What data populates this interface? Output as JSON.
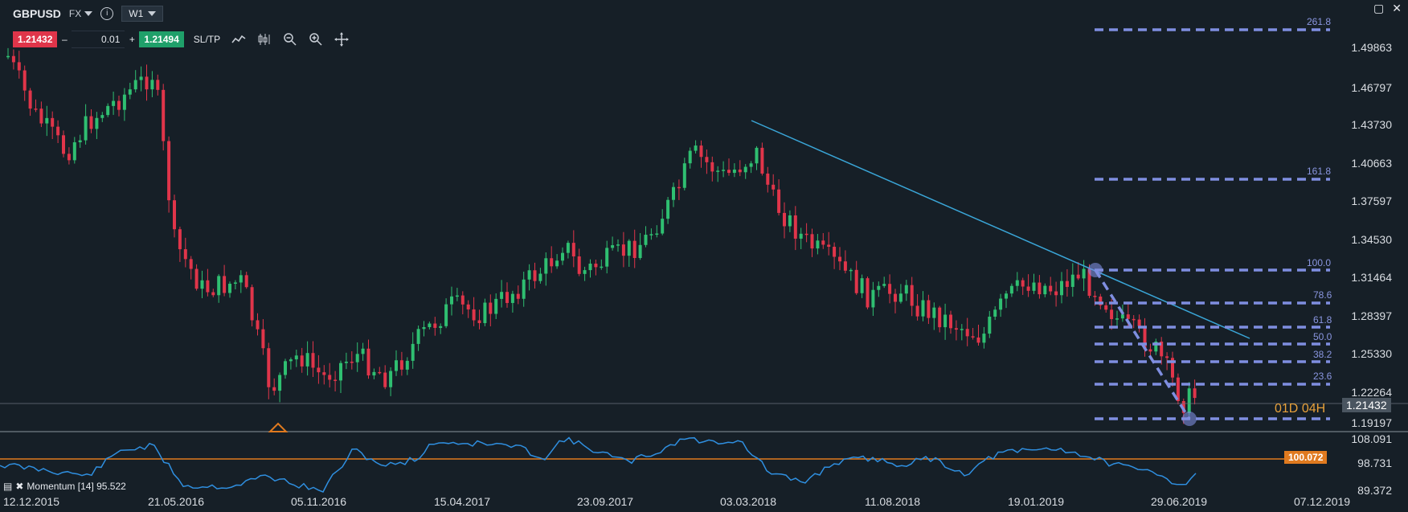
{
  "header": {
    "symbol": "GBPUSD",
    "market": "FX",
    "info_icon": "info-icon",
    "timeframe": "W1"
  },
  "trade": {
    "sell_price": "1.21432",
    "minus": "–",
    "lot": "0.01",
    "plus": "+",
    "buy_price": "1.21494",
    "sltp_label": "SL/TP"
  },
  "toolbar": {
    "icons": [
      "line-chart-icon",
      "candlestick-icon",
      "zoom-out-icon",
      "zoom-in-icon",
      "crosshair-icon"
    ]
  },
  "window": {
    "icons": [
      "maximize-icon",
      "close-icon"
    ]
  },
  "y_axis": {
    "labels": [
      "1.49863",
      "1.46797",
      "1.43730",
      "1.40663",
      "1.37597",
      "1.34530",
      "1.31464",
      "1.28397",
      "1.25330",
      "1.22264",
      "1.19197"
    ],
    "current_price": "1.21432",
    "countdown_d": "01D",
    "countdown_h": "04H"
  },
  "fibonacci": {
    "levels": [
      "261.8",
      "161.8",
      "100.0",
      "78.6",
      "61.8",
      "50.0",
      "38.2",
      "23.6"
    ]
  },
  "momentum": {
    "label": "Momentum [14] 95.522",
    "axis": [
      "108.091",
      "98.731",
      "89.372"
    ],
    "current": "100.072"
  },
  "x_axis": {
    "labels": [
      "12.12.2015",
      "21.05.2016",
      "05.11.2016",
      "15.04.2017",
      "23.09.2017",
      "03.03.2018",
      "11.08.2018",
      "19.01.2019",
      "29.06.2019",
      "07.12.2019"
    ]
  },
  "colors": {
    "background": "#161f27",
    "bull": "#2fbf71",
    "bear": "#e0354a",
    "fib": "#7f8ee0",
    "trendline": "#3aa6d8",
    "momentum_line": "#2f8fe0",
    "momentum_ref": "#e07a1f",
    "current_price_tag": "#4a5560"
  }
}
